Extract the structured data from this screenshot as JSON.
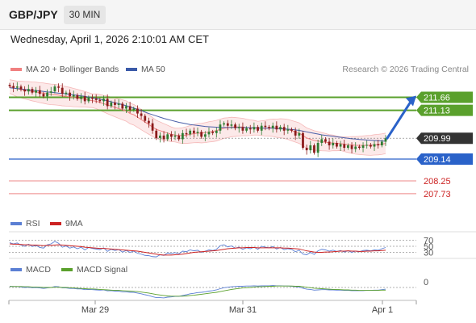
{
  "header": {
    "symbol": "GBP/JPY",
    "interval": "30 MIN"
  },
  "datetime": "Wednesday, April 1, 2026 2:10:01 AM CET",
  "legend_main": {
    "ma20": "MA 20 + Bollinger Bands",
    "ma50": "MA 50",
    "credit": "Research © 2026 Trading Central"
  },
  "legend_rsi": {
    "rsi": "RSI",
    "ma9": "9MA"
  },
  "legend_macd": {
    "macd": "MACD",
    "signal": "MACD Signal"
  },
  "colors": {
    "ma20": "#f08080",
    "ma50": "#4a5fa8",
    "bullish": "#5aa02c",
    "bearish": "#cc2222",
    "current": "#333333",
    "support": "#2a62c9",
    "arrow": "#2a62c9"
  },
  "chart_data": {
    "type": "candlestick",
    "price_range": [
      207.0,
      212.5
    ],
    "x_ticks": [
      "Mar 29",
      "Mar 31",
      "Apr 1"
    ],
    "levels": [
      {
        "value": 211.66,
        "label": "211.66",
        "kind": "resistance"
      },
      {
        "value": 211.13,
        "label": "211.13",
        "kind": "resistance"
      },
      {
        "value": 209.99,
        "label": "209.99",
        "kind": "current"
      },
      {
        "value": 209.14,
        "label": "209.14",
        "kind": "support"
      },
      {
        "value": 208.25,
        "label": "208.25",
        "kind": "support-minor"
      },
      {
        "value": 207.73,
        "label": "207.73",
        "kind": "support-minor"
      }
    ],
    "close": [
      212.12,
      212.05,
      212.1,
      211.98,
      211.9,
      212.0,
      211.85,
      211.95,
      211.8,
      211.7,
      211.85,
      211.9,
      212.1,
      212.05,
      211.8,
      211.85,
      211.7,
      211.75,
      211.6,
      211.7,
      211.5,
      211.65,
      211.6,
      211.55,
      211.5,
      211.6,
      211.3,
      211.45,
      211.35,
      211.4,
      211.2,
      211.3,
      211.15,
      211.2,
      211.0,
      210.9,
      210.7,
      210.6,
      210.3,
      210.0,
      210.1,
      209.95,
      210.15,
      210.05,
      210.1,
      209.95,
      210.2,
      210.15,
      210.3,
      210.2,
      210.25,
      210.05,
      210.15,
      210.25,
      210.2,
      210.3,
      210.55,
      210.6,
      210.5,
      210.55,
      210.4,
      210.45,
      210.3,
      210.4,
      210.35,
      210.45,
      210.3,
      210.5,
      210.45,
      210.4,
      210.5,
      210.35,
      210.45,
      210.3,
      210.35,
      210.3,
      210.1,
      210.2,
      209.6,
      209.5,
      209.7,
      209.4,
      209.8,
      209.95,
      209.85,
      209.7,
      209.8,
      209.65,
      209.75,
      209.6,
      209.7,
      209.55,
      209.65,
      209.6,
      209.7,
      209.72,
      209.65,
      209.75,
      209.7,
      209.85,
      209.99
    ],
    "ma20": [
      212.1,
      212.05,
      212.0,
      211.98,
      211.95,
      211.93,
      211.9,
      211.88,
      211.85,
      211.83,
      211.8,
      211.78,
      211.77,
      211.75,
      211.72,
      211.7,
      211.68,
      211.65,
      211.63,
      211.6,
      211.58,
      211.55,
      211.52,
      211.5,
      211.45,
      211.4,
      211.35,
      211.3,
      211.25,
      211.2,
      211.15,
      211.1,
      211.0,
      210.95,
      210.85,
      210.75,
      210.65,
      210.55,
      210.45,
      210.35,
      210.3,
      210.25,
      210.2,
      210.15,
      210.12,
      210.1,
      210.1,
      210.12,
      210.15,
      210.18,
      210.2,
      210.2,
      210.22,
      210.25,
      210.27,
      210.3,
      210.35,
      210.4,
      210.42,
      210.45,
      210.45,
      210.45,
      210.45,
      210.43,
      210.42,
      210.42,
      210.4,
      210.4,
      210.4,
      210.42,
      210.42,
      210.4,
      210.4,
      210.38,
      210.35,
      210.3,
      210.25,
      210.2,
      210.1,
      210.0,
      209.95,
      209.9,
      209.88,
      209.85,
      209.83,
      209.8,
      209.8,
      209.78,
      209.77,
      209.75,
      209.73,
      209.72,
      209.7,
      209.7,
      209.7,
      209.7,
      209.7,
      209.72,
      209.73,
      209.75,
      209.78
    ],
    "ma50": [
      212.05,
      212.03,
      212.02,
      212.0,
      211.98,
      211.96,
      211.95,
      211.93,
      211.92,
      211.9,
      211.88,
      211.87,
      211.85,
      211.83,
      211.82,
      211.8,
      211.78,
      211.76,
      211.74,
      211.72,
      211.7,
      211.67,
      211.64,
      211.61,
      211.58,
      211.55,
      211.52,
      211.48,
      211.44,
      211.4,
      211.36,
      211.32,
      211.27,
      211.22,
      211.17,
      211.12,
      211.06,
      211.0,
      210.95,
      210.9,
      210.85,
      210.8,
      210.76,
      210.72,
      210.68,
      210.64,
      210.61,
      210.58,
      210.55,
      210.53,
      210.51,
      210.49,
      210.47,
      210.46,
      210.45,
      210.44,
      210.43,
      210.43,
      210.43,
      210.43,
      210.43,
      210.43,
      210.43,
      210.43,
      210.42,
      210.42,
      210.41,
      210.41,
      210.4,
      210.4,
      210.4,
      210.39,
      210.38,
      210.37,
      210.36,
      210.35,
      210.33,
      210.31,
      210.28,
      210.25,
      210.22,
      210.19,
      210.16,
      210.13,
      210.11,
      210.09,
      210.07,
      210.05,
      210.03,
      210.01,
      209.99,
      209.97,
      209.96,
      209.94,
      209.93,
      209.92,
      209.91,
      209.9,
      209.89,
      209.88,
      209.87
    ],
    "rsi": {
      "levels": [
        70,
        50,
        30
      ],
      "rsi": [
        62,
        58,
        61,
        54,
        50,
        57,
        49,
        53,
        46,
        44,
        55,
        58,
        66,
        60,
        47,
        51,
        44,
        48,
        42,
        47,
        38,
        46,
        43,
        41,
        39,
        45,
        33,
        40,
        36,
        39,
        31,
        36,
        30,
        34,
        27,
        24,
        20,
        19,
        16,
        15,
        22,
        20,
        28,
        26,
        29,
        25,
        34,
        32,
        38,
        35,
        37,
        30,
        34,
        38,
        36,
        40,
        52,
        55,
        48,
        51,
        44,
        47,
        40,
        45,
        42,
        47,
        40,
        50,
        47,
        45,
        49,
        41,
        46,
        39,
        42,
        40,
        32,
        37,
        24,
        22,
        30,
        23,
        35,
        40,
        38,
        34,
        37,
        33,
        36,
        31,
        35,
        30,
        34,
        32,
        36,
        37,
        35,
        38,
        37,
        42,
        46
      ],
      "ma9": [
        58,
        57,
        57,
        56,
        55,
        55,
        54,
        54,
        53,
        52,
        53,
        53,
        54,
        55,
        54,
        53,
        52,
        51,
        50,
        49,
        47,
        46,
        45,
        44,
        43,
        43,
        42,
        41,
        40,
        39,
        38,
        37,
        36,
        35,
        34,
        32,
        30,
        28,
        26,
        24,
        22,
        21,
        21,
        21,
        22,
        23,
        24,
        26,
        28,
        30,
        31,
        32,
        33,
        34,
        35,
        36,
        38,
        40,
        42,
        43,
        44,
        45,
        45,
        46,
        46,
        46,
        45,
        45,
        45,
        45,
        45,
        45,
        45,
        44,
        44,
        43,
        42,
        41,
        38,
        35,
        33,
        31,
        30,
        30,
        31,
        31,
        32,
        33,
        34,
        34,
        35,
        34,
        34,
        33,
        33,
        34,
        34,
        35,
        35,
        36,
        37
      ]
    },
    "macd": {
      "zero_label": "0",
      "macd": [
        0.05,
        0.04,
        0.04,
        0.02,
        0.0,
        0.01,
        -0.01,
        0.0,
        -0.02,
        -0.04,
        -0.02,
        0.0,
        0.04,
        0.03,
        -0.02,
        -0.02,
        -0.04,
        -0.04,
        -0.06,
        -0.06,
        -0.09,
        -0.08,
        -0.09,
        -0.1,
        -0.11,
        -0.1,
        -0.14,
        -0.13,
        -0.15,
        -0.15,
        -0.18,
        -0.18,
        -0.2,
        -0.2,
        -0.23,
        -0.26,
        -0.3,
        -0.33,
        -0.38,
        -0.42,
        -0.42,
        -0.43,
        -0.4,
        -0.39,
        -0.37,
        -0.37,
        -0.33,
        -0.3,
        -0.26,
        -0.24,
        -0.21,
        -0.2,
        -0.18,
        -0.15,
        -0.13,
        -0.1,
        -0.05,
        -0.01,
        0.01,
        0.03,
        0.04,
        0.05,
        0.05,
        0.06,
        0.06,
        0.07,
        0.06,
        0.07,
        0.07,
        0.07,
        0.08,
        0.07,
        0.07,
        0.06,
        0.06,
        0.05,
        0.03,
        0.02,
        -0.03,
        -0.07,
        -0.08,
        -0.11,
        -0.1,
        -0.09,
        -0.09,
        -0.1,
        -0.1,
        -0.11,
        -0.11,
        -0.12,
        -0.12,
        -0.13,
        -0.13,
        -0.13,
        -0.13,
        -0.12,
        -0.12,
        -0.11,
        -0.11,
        -0.09,
        -0.07
      ],
      "signal": [
        0.04,
        0.04,
        0.04,
        0.04,
        0.03,
        0.03,
        0.02,
        0.02,
        0.01,
        0.0,
        0.0,
        0.0,
        0.01,
        0.01,
        0.0,
        0.0,
        -0.01,
        -0.02,
        -0.03,
        -0.04,
        -0.05,
        -0.06,
        -0.06,
        -0.07,
        -0.08,
        -0.09,
        -0.1,
        -0.11,
        -0.12,
        -0.12,
        -0.13,
        -0.14,
        -0.15,
        -0.16,
        -0.17,
        -0.19,
        -0.21,
        -0.23,
        -0.26,
        -0.29,
        -0.31,
        -0.33,
        -0.35,
        -0.36,
        -0.36,
        -0.36,
        -0.36,
        -0.35,
        -0.33,
        -0.32,
        -0.3,
        -0.28,
        -0.26,
        -0.24,
        -0.22,
        -0.2,
        -0.17,
        -0.14,
        -0.11,
        -0.08,
        -0.06,
        -0.04,
        -0.02,
        -0.01,
        0.0,
        0.02,
        0.03,
        0.03,
        0.04,
        0.05,
        0.05,
        0.06,
        0.06,
        0.06,
        0.06,
        0.06,
        0.05,
        0.05,
        0.03,
        0.01,
        -0.01,
        -0.03,
        -0.04,
        -0.05,
        -0.06,
        -0.07,
        -0.08,
        -0.08,
        -0.09,
        -0.1,
        -0.1,
        -0.11,
        -0.11,
        -0.12,
        -0.12,
        -0.12,
        -0.12,
        -0.12,
        -0.12,
        -0.11,
        -0.11
      ]
    }
  }
}
